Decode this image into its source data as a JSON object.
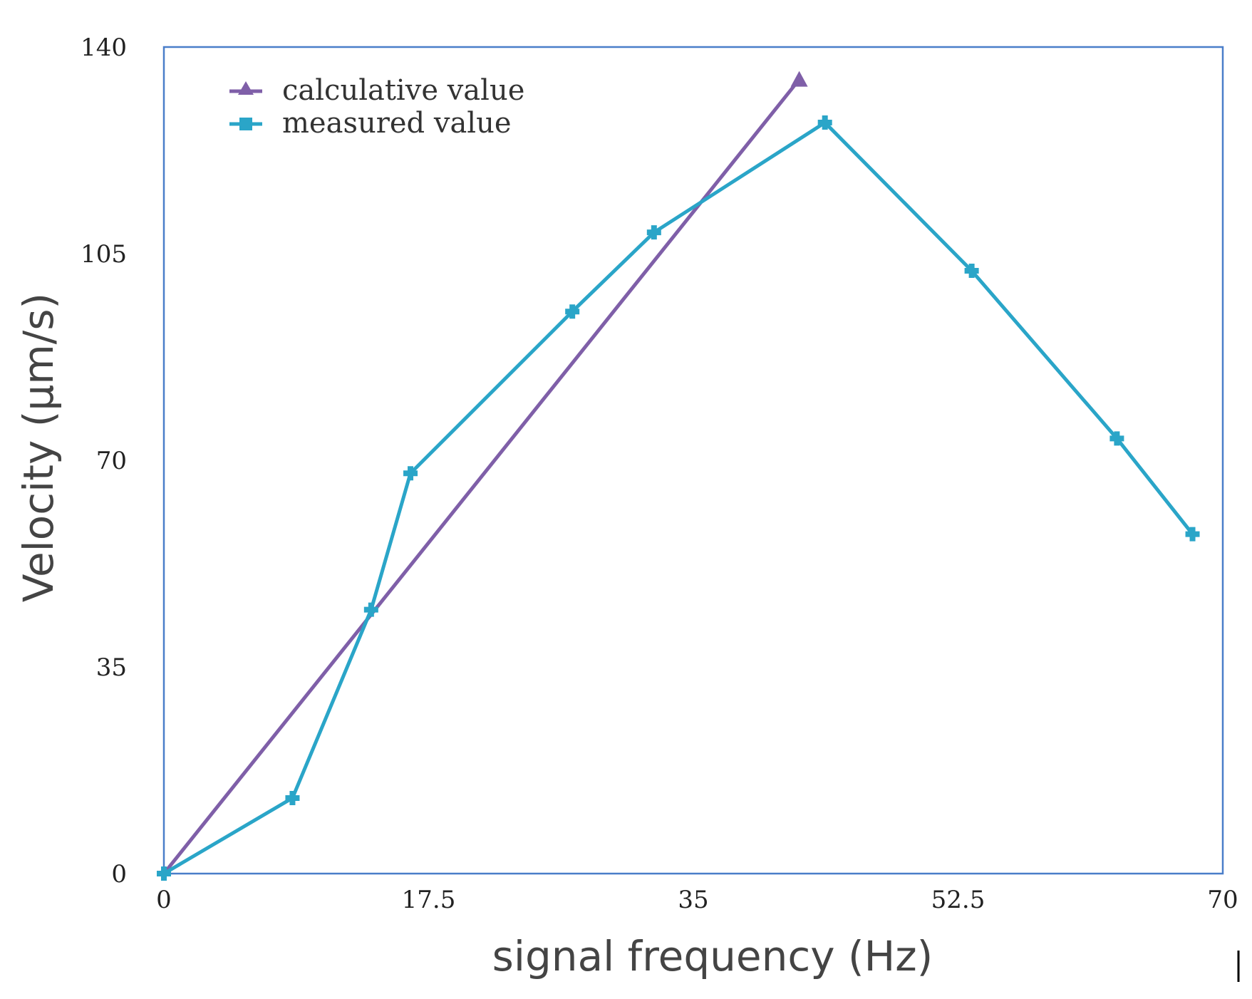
{
  "chart_data": {
    "type": "line",
    "title": "",
    "xlabel": "signal frequency (Hz)",
    "ylabel": "Velocity (μm/s)",
    "xlim": [
      0,
      70
    ],
    "ylim": [
      0,
      140
    ],
    "x_ticks": [
      "0",
      "17.5",
      "35",
      "52.5",
      "70"
    ],
    "y_ticks": [
      "0",
      "35",
      "70",
      "105",
      "140"
    ],
    "grid": false,
    "legend_position": "top-left",
    "series": [
      {
        "name": "calculative value",
        "color": "#7f5fa8",
        "marker": "triangle",
        "points": [
          {
            "x": 0,
            "y": 0
          },
          {
            "x": 42,
            "y": 134.5
          }
        ]
      },
      {
        "name": "measured value",
        "color": "#2aa5c8",
        "marker": "cross",
        "points": [
          {
            "x": 0,
            "y": 0
          },
          {
            "x": 8.5,
            "y": 12.8
          },
          {
            "x": 13.7,
            "y": 44.7
          },
          {
            "x": 16.3,
            "y": 67.8
          },
          {
            "x": 27,
            "y": 95.2
          },
          {
            "x": 32.4,
            "y": 108.6
          },
          {
            "x": 43.7,
            "y": 127.2
          },
          {
            "x": 53.4,
            "y": 102.1
          },
          {
            "x": 63,
            "y": 73.7
          },
          {
            "x": 68,
            "y": 57.5
          }
        ]
      }
    ]
  }
}
